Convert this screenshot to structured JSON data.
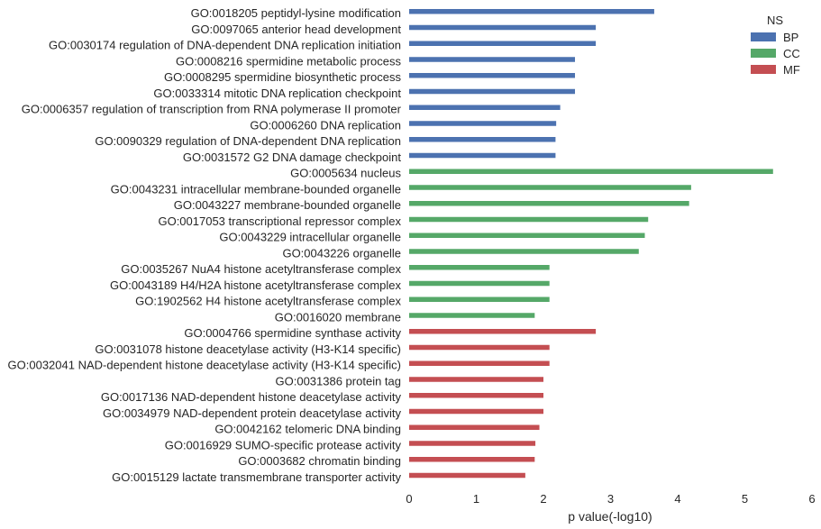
{
  "chart_data": {
    "type": "bar",
    "orientation": "horizontal",
    "title": "",
    "xlabel": "p value(-log10)",
    "ylabel": "",
    "xlim": [
      0,
      6
    ],
    "xticks": [
      "0",
      "1",
      "2",
      "3",
      "4",
      "5",
      "6"
    ],
    "grid": false,
    "legend": {
      "title": "NS",
      "placement": "top-right",
      "entries": [
        {
          "name": "BP",
          "color": "#4c72b0"
        },
        {
          "name": "CC",
          "color": "#55a868"
        },
        {
          "name": "MF",
          "color": "#c44e52"
        }
      ]
    },
    "categories": [
      "GO:0018205 peptidyl-lysine modification",
      "GO:0097065 anterior head development",
      "GO:0030174 regulation of DNA-dependent DNA replication initiation",
      "GO:0008216 spermidine metabolic process",
      "GO:0008295 spermidine biosynthetic process",
      "GO:0033314 mitotic DNA replication checkpoint",
      "GO:0006357 regulation of transcription from RNA polymerase II promoter",
      "GO:0006260 DNA replication",
      "GO:0090329 regulation of DNA-dependent DNA replication",
      "GO:0031572 G2 DNA damage checkpoint",
      "GO:0005634 nucleus",
      "GO:0043231 intracellular membrane-bounded organelle",
      "GO:0043227 membrane-bounded organelle",
      "GO:0017053 transcriptional repressor complex",
      "GO:0043229 intracellular organelle",
      "GO:0043226 organelle",
      "GO:0035267 NuA4 histone acetyltransferase complex",
      "GO:0043189 H4/H2A histone acetyltransferase complex",
      "GO:1902562 H4 histone acetyltransferase complex",
      "GO:0016020 membrane",
      "GO:0004766 spermidine synthase activity",
      "GO:0031078 histone deacetylase activity (H3-K14 specific)",
      "GO:0032041 NAD-dependent histone deacetylase activity (H3-K14 specific)",
      "GO:0031386 protein tag",
      "GO:0017136 NAD-dependent histone deacetylase activity",
      "GO:0034979 NAD-dependent protein deacetylase activity",
      "GO:0042162 telomeric DNA binding",
      "GO:0016929 SUMO-specific protease activity",
      "GO:0003682 chromatin binding",
      "GO:0015129 lactate transmembrane transporter activity"
    ],
    "groups": [
      "BP",
      "BP",
      "BP",
      "BP",
      "BP",
      "BP",
      "BP",
      "BP",
      "BP",
      "BP",
      "CC",
      "CC",
      "CC",
      "CC",
      "CC",
      "CC",
      "CC",
      "CC",
      "CC",
      "CC",
      "MF",
      "MF",
      "MF",
      "MF",
      "MF",
      "MF",
      "MF",
      "MF",
      "MF",
      "MF"
    ],
    "values": [
      3.65,
      2.78,
      2.78,
      2.47,
      2.47,
      2.47,
      2.25,
      2.19,
      2.18,
      2.18,
      5.42,
      4.2,
      4.17,
      3.56,
      3.51,
      3.42,
      2.09,
      2.09,
      2.09,
      1.87,
      2.78,
      2.09,
      2.09,
      2.0,
      2.0,
      2.0,
      1.94,
      1.88,
      1.87,
      1.73
    ]
  }
}
